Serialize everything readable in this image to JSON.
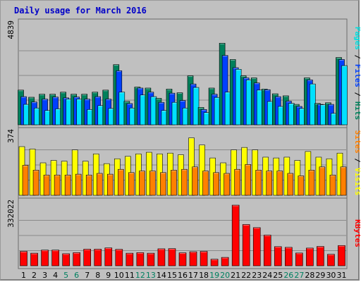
{
  "chart_data": {
    "type": "bar",
    "title": "Daily usage for March 2016",
    "categories": [
      "1",
      "2",
      "3",
      "4",
      "5",
      "6",
      "7",
      "8",
      "9",
      "10",
      "11",
      "12",
      "13",
      "14",
      "15",
      "16",
      "17",
      "18",
      "19",
      "20",
      "21",
      "22",
      "23",
      "24",
      "25",
      "26",
      "27",
      "28",
      "29",
      "30",
      "31"
    ],
    "weekend_days": [
      "5",
      "6",
      "12",
      "13",
      "19",
      "20",
      "26",
      "27"
    ],
    "panels": [
      {
        "ymax_label": "4839",
        "ymax": 4839,
        "side_label": [
          "Pages",
          "/",
          "Files",
          "/",
          "Hits"
        ],
        "side_label_colors": [
          "#00e0e0",
          "#000000",
          "#0040ff",
          "#000000",
          "#00805b"
        ],
        "series": [
          {
            "name": "Hits",
            "color": "#00805b",
            "values": [
              1700,
              1350,
              1500,
              1500,
              1600,
              1500,
              1500,
              1600,
              1700,
              2950,
              1150,
              1850,
              1800,
              1300,
              1750,
              1570,
              2400,
              850,
              1800,
              4000,
              3200,
              2400,
              2300,
              1750,
              1520,
              1420,
              1000,
              2300,
              1050,
              1080,
              3300
            ]
          },
          {
            "name": "Files",
            "color": "#0040ff",
            "values": [
              1380,
              1120,
              1260,
              1360,
              1320,
              1360,
              1260,
              1380,
              1260,
              2650,
              1040,
              1800,
              1600,
              1100,
              1550,
              1190,
              2000,
              750,
              1500,
              3400,
              2800,
              2300,
              2050,
              1720,
              1380,
              1160,
              900,
              2200,
              1000,
              1000,
              3200
            ]
          },
          {
            "name": "Pages",
            "color": "#00e0ff",
            "values": [
              1000,
              820,
              700,
              780,
              1260,
              1260,
              750,
              940,
              800,
              1600,
              820,
              1460,
              1380,
              700,
              1100,
              820,
              1830,
              600,
              1340,
              1600,
              2720,
              2200,
              1700,
              1140,
              900,
              1050,
              800,
              2000,
              980,
              560,
              2900
            ]
          }
        ]
      },
      {
        "ymax_label": "374",
        "ymax": 374,
        "side_label": [
          "Sites",
          "/",
          "Visits"
        ],
        "side_label_colors": [
          "#ff8000",
          "#000000",
          "#ffff00"
        ],
        "series": [
          {
            "name": "Visits",
            "color": "#ffff00",
            "values": [
              300,
              285,
              200,
              215,
              210,
              280,
              210,
              255,
              195,
              225,
              240,
              255,
              265,
              255,
              260,
              250,
              354,
              310,
              230,
              200,
              280,
              295,
              280,
              235,
              230,
              235,
              215,
              270,
              235,
              225,
              260
            ]
          },
          {
            "name": "Sites",
            "color": "#ff8000",
            "values": [
              185,
              155,
              125,
              125,
              125,
              130,
              125,
              135,
              130,
              160,
              140,
              150,
              150,
              140,
              155,
              160,
              175,
              150,
              140,
              135,
              160,
              190,
              155,
              150,
              150,
              135,
              120,
              155,
              175,
              125,
              175
            ]
          }
        ]
      },
      {
        "ymax_label": "332022",
        "ymax": 332022,
        "side_label": [
          "KBytes"
        ],
        "side_label_colors": [
          "#ff0000"
        ],
        "series": [
          {
            "name": "KBytes",
            "color": "#ff0000",
            "values": [
              79000,
              69000,
              86000,
              86000,
              66000,
              72000,
              91000,
              91000,
              98000,
              90000,
              69000,
              72000,
              69000,
              93000,
              94000,
              71000,
              77000,
              79000,
              36000,
              46000,
              332022,
              226000,
              209000,
              168000,
              105000,
              101000,
              70000,
              97000,
              106000,
              63000,
              111000
            ]
          }
        ]
      }
    ]
  }
}
